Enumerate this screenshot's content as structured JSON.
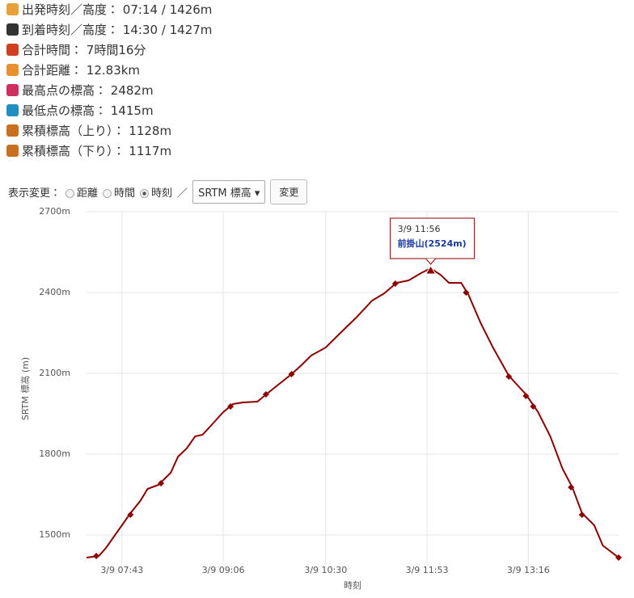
{
  "stats": [
    {
      "label": "出発時刻／高度：",
      "value": "07:14 / 1426m"
    },
    {
      "label": "到着時刻／高度：",
      "value": "14:30 / 1427m"
    },
    {
      "label": "合計時間：",
      "value": "7時間16分"
    },
    {
      "label": "合計距離：",
      "value": "12.83km"
    },
    {
      "label": "最高点の標高：",
      "value": "2482m"
    },
    {
      "label": "最低点の標高：",
      "value": "1415m"
    },
    {
      "label": "累積標高（上り）：",
      "value": "1128m"
    },
    {
      "label": "累積標高（下り）：",
      "value": "1117m"
    }
  ],
  "controls": {
    "label": "表示変更：",
    "options": [
      "距離",
      "時間",
      "時刻"
    ],
    "separator": "／",
    "select": "SRTM 標高",
    "button": "変更"
  },
  "chart_data": {
    "type": "line",
    "color": "#8b0000",
    "x": [
      "3/9 07:14",
      "3/9 07:24",
      "3/9 07:30",
      "3/9 07:36",
      "3/9 07:43",
      "3/9 07:50",
      "3/9 07:58",
      "3/9 08:04",
      "3/9 08:13",
      "3/9 08:23",
      "3/9 08:29",
      "3/9 08:36",
      "3/9 08:43",
      "3/9 08:49",
      "3/9 08:57",
      "3/9 09:06",
      "3/9 09:14",
      "3/9 09:22",
      "3/9 09:34",
      "3/9 09:42",
      "3/9 09:52",
      "3/9 10:02",
      "3/9 10:10",
      "3/9 10:18",
      "3/9 10:30",
      "3/9 10:42",
      "3/9 10:55",
      "3/9 11:08",
      "3/9 11:18",
      "3/9 11:28",
      "3/9 11:38",
      "3/9 11:48",
      "3/9 11:56",
      "3/9 12:04",
      "3/9 12:11",
      "3/9 12:21",
      "3/9 12:27",
      "3/9 12:37",
      "3/9 12:47",
      "3/9 13:00",
      "3/9 13:14",
      "3/9 13:24",
      "3/9 13:34",
      "3/9 13:44",
      "3/9 13:52",
      "3/9 14:00",
      "3/9 14:10",
      "3/9 14:17",
      "3/9 14:30"
    ],
    "values": [
      1416,
      1422,
      1452,
      1491,
      1536,
      1581,
      1626,
      1671,
      1686,
      1731,
      1791,
      1821,
      1866,
      1872,
      1911,
      1956,
      1986,
      1992,
      1995,
      2025,
      2061,
      2097,
      2130,
      2166,
      2196,
      2250,
      2307,
      2370,
      2397,
      2436,
      2445,
      2472,
      2490,
      2466,
      2436,
      2436,
      2391,
      2286,
      2196,
      2091,
      2022,
      1956,
      1866,
      1746,
      1677,
      1581,
      1536,
      1461,
      1416
    ],
    "markers": {
      "color": "#8b0000",
      "x": [
        "3/9 07:22",
        "3/9 07:50",
        "3/9 08:15",
        "3/9 09:12",
        "3/9 09:41",
        "3/9 10:02",
        "3/9 11:27",
        "3/9 12:25",
        "3/9 13:00",
        "3/9 13:14",
        "3/9 13:20",
        "3/9 13:51",
        "3/9 14:00",
        "3/9 14:30"
      ],
      "values": [
        1422,
        1575,
        1692,
        1977,
        2022,
        2097,
        2433,
        2400,
        2088,
        2016,
        1977,
        1677,
        1575,
        1416
      ]
    },
    "annotation": {
      "x": "3/9 11:56",
      "value": 2481,
      "text": "前掛山(2524m)"
    },
    "xlim": [
      "3/9 07:14",
      "3/9 14:30"
    ],
    "xticks": [
      "3/9 07:43",
      "3/9 09:06",
      "3/9 10:30",
      "3/9 11:53",
      "3/9 13:16"
    ],
    "ylim": [
      1386,
      2700
    ],
    "yticks": [
      {
        "value": 1500,
        "label": "1500m"
      },
      {
        "value": 1800,
        "label": "1800m"
      },
      {
        "value": 2100,
        "label": "2100m"
      },
      {
        "value": 2400,
        "label": "2400m"
      },
      {
        "value": 2700,
        "label": "2700m"
      }
    ],
    "x_label": "時刻",
    "y_label": "SRTM 標高 (m)",
    "grid": true
  }
}
